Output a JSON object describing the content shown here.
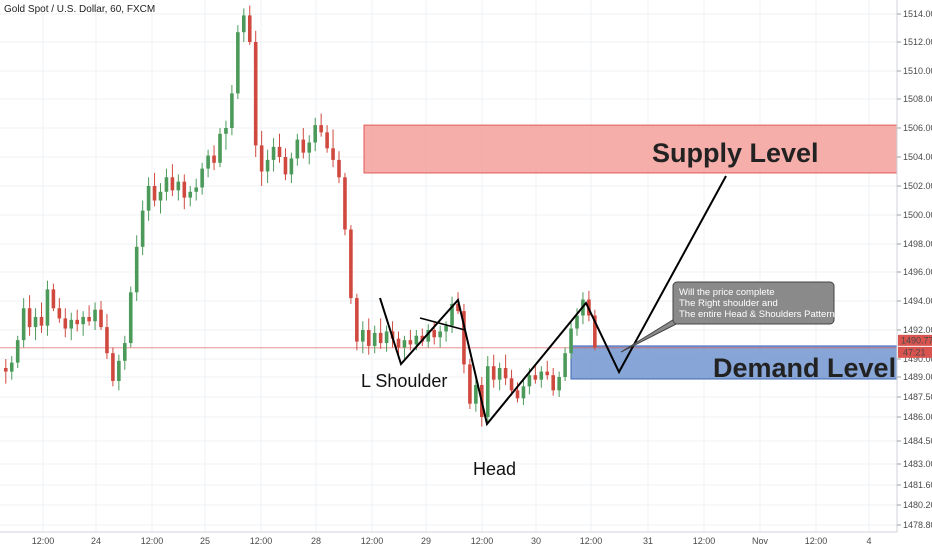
{
  "title": "Gold Spot / U.S. Dollar, 60, FXCM",
  "chart_data": {
    "type": "candlestick",
    "title": "Gold Spot / U.S. Dollar, 60, FXCM",
    "ylim": [
      1477.9,
      1515.0
    ],
    "y_ticks": [
      "1514.00",
      "1512.00",
      "1510.00",
      "1508.00",
      "1506.00",
      "1504.00",
      "1502.00",
      "1500.00",
      "1498.00",
      "1496.00",
      "1494.00",
      "1492.00",
      "1490.00",
      "1489.00",
      "1487.50",
      "1486.00",
      "1484.50",
      "1483.00",
      "1481.60",
      "1480.20",
      "1478.80"
    ],
    "x_ticks": [
      "12:00",
      "24",
      "12:00",
      "25",
      "12:00",
      "28",
      "12:00",
      "29",
      "12:00",
      "30",
      "12:00",
      "31",
      "12:00",
      "Nov",
      "12:00",
      "4"
    ],
    "current_price": "1490.77",
    "countdown": "47:21",
    "grid": true,
    "series": [
      {
        "type": "ohlc",
        "values": [
          [
            1489.5,
            1490.0,
            1488.5,
            1489.3
          ],
          [
            1489.3,
            1490.2,
            1488.8,
            1489.8
          ],
          [
            1489.8,
            1491.6,
            1489.5,
            1491.3
          ],
          [
            1491.3,
            1494.2,
            1490.8,
            1493.5
          ],
          [
            1493.5,
            1494.4,
            1491.6,
            1492.2
          ],
          [
            1492.2,
            1493.5,
            1491.3,
            1492.9
          ],
          [
            1492.9,
            1493.9,
            1491.8,
            1492.3
          ],
          [
            1492.3,
            1495.4,
            1491.6,
            1494.8
          ],
          [
            1494.8,
            1495.2,
            1493.3,
            1493.5
          ],
          [
            1493.5,
            1494.2,
            1492.5,
            1492.8
          ],
          [
            1492.8,
            1493.5,
            1491.5,
            1492.1
          ],
          [
            1492.1,
            1493.2,
            1491.3,
            1492.7
          ],
          [
            1492.7,
            1493.4,
            1491.9,
            1492.4
          ],
          [
            1492.4,
            1493.3,
            1491.6,
            1492.9
          ],
          [
            1492.9,
            1493.7,
            1492.3,
            1492.6
          ],
          [
            1492.6,
            1493.9,
            1492.0,
            1493.4
          ],
          [
            1493.4,
            1494.0,
            1492.0,
            1492.2
          ],
          [
            1492.2,
            1493.1,
            1490.0,
            1490.4
          ],
          [
            1490.4,
            1490.8,
            1488.3,
            1488.7
          ],
          [
            1488.7,
            1490.3,
            1488.0,
            1489.9
          ],
          [
            1489.9,
            1491.6,
            1489.4,
            1491.1
          ],
          [
            1491.1,
            1495.0,
            1490.8,
            1494.6
          ],
          [
            1494.6,
            1498.6,
            1494.0,
            1497.8
          ],
          [
            1497.8,
            1501.0,
            1497.2,
            1500.3
          ],
          [
            1500.3,
            1502.6,
            1499.6,
            1502.0
          ],
          [
            1502.0,
            1502.9,
            1500.6,
            1501.0
          ],
          [
            1501.0,
            1502.2,
            1500.1,
            1501.6
          ],
          [
            1501.6,
            1503.2,
            1501.0,
            1502.6
          ],
          [
            1502.6,
            1503.5,
            1501.3,
            1501.7
          ],
          [
            1501.7,
            1502.8,
            1501.0,
            1502.3
          ],
          [
            1502.3,
            1502.8,
            1500.4,
            1501.2
          ],
          [
            1501.2,
            1502.0,
            1500.6,
            1501.6
          ],
          [
            1501.6,
            1502.5,
            1501.0,
            1501.9
          ],
          [
            1501.9,
            1503.6,
            1501.4,
            1503.2
          ],
          [
            1503.2,
            1504.5,
            1502.6,
            1504.1
          ],
          [
            1504.1,
            1504.8,
            1503.1,
            1503.6
          ],
          [
            1503.6,
            1506.0,
            1503.3,
            1505.6
          ],
          [
            1505.6,
            1506.5,
            1504.5,
            1506.0
          ],
          [
            1506.0,
            1509.0,
            1505.5,
            1508.4
          ],
          [
            1508.4,
            1513.2,
            1508.0,
            1512.7
          ],
          [
            1512.7,
            1514.4,
            1512.0,
            1513.9
          ],
          [
            1513.9,
            1514.6,
            1511.8,
            1512.0
          ],
          [
            1512.0,
            1512.8,
            1504.0,
            1504.8
          ],
          [
            1504.8,
            1505.8,
            1502.0,
            1503.0
          ],
          [
            1503.0,
            1504.5,
            1502.2,
            1503.8
          ],
          [
            1503.8,
            1505.3,
            1503.0,
            1504.7
          ],
          [
            1504.7,
            1505.6,
            1503.6,
            1504.0
          ],
          [
            1504.0,
            1504.6,
            1502.4,
            1502.8
          ],
          [
            1502.8,
            1504.3,
            1502.2,
            1503.9
          ],
          [
            1503.9,
            1505.6,
            1503.4,
            1505.2
          ],
          [
            1505.2,
            1506.0,
            1503.9,
            1504.3
          ],
          [
            1504.3,
            1505.5,
            1503.5,
            1505.0
          ],
          [
            1505.0,
            1506.7,
            1504.4,
            1506.2
          ],
          [
            1506.2,
            1507.0,
            1505.4,
            1505.7
          ],
          [
            1505.7,
            1506.2,
            1504.3,
            1504.6
          ],
          [
            1504.6,
            1505.9,
            1503.3,
            1503.8
          ],
          [
            1503.8,
            1504.4,
            1502.2,
            1502.6
          ],
          [
            1502.6,
            1502.9,
            1498.6,
            1499.0
          ],
          [
            1499.0,
            1499.3,
            1493.8,
            1494.2
          ],
          [
            1494.2,
            1494.5,
            1490.6,
            1491.2
          ],
          [
            1491.2,
            1492.6,
            1490.4,
            1492.0
          ],
          [
            1492.0,
            1492.8,
            1490.3,
            1490.9
          ],
          [
            1490.9,
            1492.3,
            1490.4,
            1491.8
          ],
          [
            1491.8,
            1492.8,
            1490.7,
            1491.1
          ],
          [
            1491.1,
            1492.3,
            1490.5,
            1491.9
          ],
          [
            1491.9,
            1492.6,
            1490.8,
            1491.4
          ],
          [
            1491.4,
            1491.9,
            1490.3,
            1490.8
          ],
          [
            1490.8,
            1491.6,
            1490.0,
            1491.3
          ],
          [
            1491.3,
            1492.0,
            1490.6,
            1491.0
          ],
          [
            1491.0,
            1492.0,
            1490.6,
            1491.6
          ],
          [
            1491.6,
            1492.1,
            1490.9,
            1491.2
          ],
          [
            1491.2,
            1492.4,
            1490.8,
            1492.0
          ],
          [
            1492.0,
            1492.5,
            1491.0,
            1491.5
          ],
          [
            1491.5,
            1492.3,
            1490.8,
            1491.9
          ],
          [
            1491.9,
            1492.6,
            1491.2,
            1492.3
          ],
          [
            1492.3,
            1494.3,
            1491.8,
            1493.8
          ],
          [
            1493.8,
            1494.6,
            1493.1,
            1493.3
          ],
          [
            1493.3,
            1493.8,
            1489.2,
            1489.7
          ],
          [
            1489.7,
            1490.0,
            1486.6,
            1487.0
          ],
          [
            1487.0,
            1489.0,
            1486.4,
            1488.4
          ],
          [
            1488.4,
            1489.0,
            1485.4,
            1486.0
          ],
          [
            1486.0,
            1490.2,
            1485.6,
            1489.6
          ],
          [
            1489.6,
            1490.3,
            1488.2,
            1488.8
          ],
          [
            1488.8,
            1489.8,
            1488.0,
            1489.5
          ],
          [
            1489.5,
            1490.3,
            1488.4,
            1488.9
          ],
          [
            1488.9,
            1489.4,
            1487.6,
            1488.0
          ],
          [
            1488.0,
            1488.6,
            1487.1,
            1487.4
          ],
          [
            1487.4,
            1488.8,
            1486.9,
            1488.3
          ],
          [
            1488.3,
            1489.5,
            1487.7,
            1489.1
          ],
          [
            1489.1,
            1489.6,
            1488.5,
            1488.8
          ],
          [
            1488.8,
            1489.6,
            1488.2,
            1489.3
          ],
          [
            1489.3,
            1489.9,
            1488.8,
            1489.1
          ],
          [
            1489.1,
            1489.5,
            1487.6,
            1488.0
          ],
          [
            1488.0,
            1489.3,
            1487.5,
            1489.0
          ],
          [
            1489.0,
            1490.8,
            1488.7,
            1490.4
          ],
          [
            1490.4,
            1492.6,
            1490.0,
            1492.1
          ],
          [
            1492.1,
            1493.5,
            1491.6,
            1493.0
          ],
          [
            1493.0,
            1494.6,
            1492.4,
            1494.1
          ],
          [
            1494.1,
            1494.7,
            1492.6,
            1493.0
          ],
          [
            1493.0,
            1493.4,
            1490.6,
            1490.8
          ]
        ]
      }
    ],
    "zones": [
      {
        "name": "Supply Level",
        "low": 1502.9,
        "high": 1506.2,
        "color": "#f4a09c"
      },
      {
        "name": "Demand Level",
        "low": 1488.85,
        "high": 1490.9,
        "color": "#7a9bd2"
      }
    ],
    "annotations": [
      {
        "text": "L Shoulder",
        "type": "label"
      },
      {
        "text": "Head",
        "type": "label"
      },
      {
        "text": "Will the price complete\nThe Right shoulder and\nThe entire Head & Shoulders Pattern",
        "type": "callout"
      }
    ]
  },
  "colors": {
    "up": "#4c9a5a",
    "down": "#d0493f",
    "grid": "#eef0f3",
    "axis_text": "#4a4a4a",
    "price_badge": "#d9534f",
    "callout_bg": "#8a8a8a"
  }
}
